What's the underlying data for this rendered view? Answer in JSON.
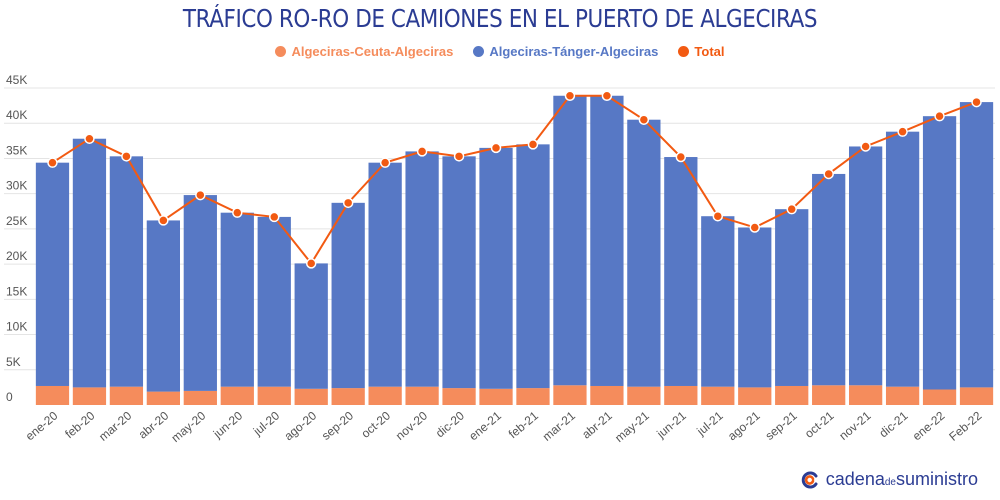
{
  "title": "TRÁFICO RO-RO DE CAMIONES EN EL PUERTO DE ALGECIRAS",
  "colors": {
    "ceuta": "#f58c5c",
    "tanger": "#5778c5",
    "total": "#f25a12",
    "title": "#2b3c93",
    "grid": "#e4e4e4"
  },
  "chart_data": {
    "type": "bar",
    "stacked": true,
    "title": "TRÁFICO RO-RO DE CAMIONES EN EL PUERTO DE ALGECIRAS",
    "categories": [
      "ene-20",
      "feb-20",
      "mar-20",
      "abr-20",
      "may-20",
      "jun-20",
      "jul-20",
      "ago-20",
      "sep-20",
      "oct-20",
      "nov-20",
      "dic-20",
      "ene-21",
      "feb-21",
      "mar-21",
      "abr-21",
      "may-21",
      "jun-21",
      "jul-21",
      "ago-21",
      "sep-21",
      "oct-21",
      "nov-21",
      "dic-21",
      "ene-22",
      "Feb-22"
    ],
    "series": [
      {
        "name": "Algeciras-Ceuta-Algeciras",
        "type": "bar",
        "values": [
          2700,
          2500,
          2600,
          1900,
          2000,
          2600,
          2600,
          2300,
          2400,
          2600,
          2600,
          2400,
          2300,
          2400,
          2800,
          2700,
          2600,
          2700,
          2600,
          2500,
          2700,
          2800,
          2800,
          2600,
          2200,
          2500
        ]
      },
      {
        "name": "Algeciras-Tánger-Algeciras",
        "type": "bar",
        "values": [
          31700,
          35300,
          32700,
          24300,
          27800,
          24700,
          24100,
          17800,
          26300,
          31800,
          33400,
          32900,
          34200,
          34600,
          41100,
          41200,
          37900,
          32500,
          24200,
          22700,
          25100,
          30000,
          33900,
          36200,
          38800,
          40500
        ]
      },
      {
        "name": "Total",
        "type": "line",
        "values": [
          34400,
          37800,
          35300,
          26200,
          29800,
          27300,
          26700,
          20100,
          28700,
          34400,
          36000,
          35300,
          36500,
          37000,
          43900,
          43900,
          40500,
          35200,
          26800,
          25200,
          27800,
          32800,
          36700,
          38800,
          41000,
          43000
        ]
      }
    ],
    "yticks": [
      "0",
      "5K",
      "10K",
      "15K",
      "20K",
      "25K",
      "30K",
      "35K",
      "40K",
      "45K"
    ],
    "ylim": [
      0,
      45000
    ],
    "legend_position": "top"
  },
  "brand": {
    "name_a": "cadena",
    "name_de": "de",
    "name_b": "suministro"
  }
}
